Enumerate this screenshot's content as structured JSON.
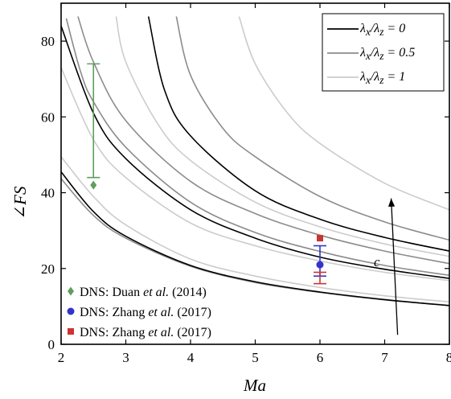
{
  "chart_data": {
    "type": "line",
    "xlabel": "Ma",
    "ylabel": "∠FS",
    "xlim": [
      2,
      8
    ],
    "ylim": [
      0,
      90
    ],
    "xticks": [
      2,
      3,
      4,
      5,
      6,
      7,
      8
    ],
    "yticks": [
      0,
      20,
      40,
      60,
      80
    ],
    "xtick_labels": [
      "2",
      "3",
      "4",
      "5",
      "6",
      "7",
      "8"
    ],
    "ytick_labels": [
      "0",
      "20",
      "40",
      "60",
      "80"
    ],
    "grid": false,
    "legend_position": "top-right",
    "legend": [
      {
        "series_group": "black",
        "color": "#000000",
        "label_html": "λ<sub>x</sub>/λ<sub>z</sub> = 0"
      },
      {
        "series_group": "dark-gray",
        "color": "#8c8c8c",
        "label_html": "λ<sub>x</sub>/λ<sub>z</sub> = 0.5"
      },
      {
        "series_group": "light-gray",
        "color": "#cccccc",
        "label_html": "λ<sub>x</sub>/λ<sub>z</sub> = 1"
      }
    ],
    "series": [
      {
        "group": "black",
        "color": "#000000",
        "x": [
          2,
          2.5,
          3,
          4,
          5,
          6,
          7,
          8
        ],
        "y": [
          45.5,
          35,
          28.5,
          20.8,
          16.5,
          13.8,
          11.8,
          10.2
        ]
      },
      {
        "group": "black",
        "color": "#000000",
        "x": [
          2,
          2.5,
          3,
          4,
          5,
          6,
          7,
          8
        ],
        "y": [
          84,
          61,
          49,
          35.5,
          28,
          23,
          19.8,
          17.4
        ]
      },
      {
        "group": "black",
        "color": "#000000",
        "x": [
          3.35,
          3.6,
          4,
          5,
          6,
          7,
          8
        ],
        "y": [
          86.5,
          67,
          55,
          40.5,
          33,
          28.2,
          24.6
        ]
      },
      {
        "group": "dark-gray",
        "color": "#8c8c8c",
        "x": [
          2,
          2.5,
          3,
          4,
          5,
          6,
          7,
          8
        ],
        "y": [
          43.7,
          34,
          28,
          20.6,
          16.3,
          13.7,
          11.7,
          10.3
        ]
      },
      {
        "group": "dark-gray",
        "color": "#8c8c8c",
        "x": [
          2.08,
          2.3,
          2.5,
          3,
          4,
          5,
          6,
          7,
          8
        ],
        "y": [
          86,
          72,
          64,
          52,
          37.5,
          29.5,
          24.5,
          20.8,
          18.2
        ]
      },
      {
        "group": "dark-gray",
        "color": "#8c8c8c",
        "x": [
          2.26,
          2.5,
          3,
          4,
          5,
          6,
          7,
          8
        ],
        "y": [
          86.5,
          74.5,
          59,
          43,
          34.5,
          28.8,
          24.6,
          21.3
        ]
      },
      {
        "group": "dark-gray",
        "color": "#8c8c8c",
        "x": [
          3.78,
          4,
          4.5,
          5,
          6,
          7,
          8
        ],
        "y": [
          86.5,
          71,
          57,
          49.5,
          39,
          32.3,
          27.5
        ]
      },
      {
        "group": "light-gray",
        "color": "#cccccc",
        "x": [
          2,
          2.5,
          3,
          4,
          5,
          6,
          7,
          8
        ],
        "y": [
          49.5,
          39,
          31.5,
          22.5,
          18,
          15,
          12.8,
          11.2
        ]
      },
      {
        "group": "light-gray",
        "color": "#cccccc",
        "x": [
          2,
          2.5,
          3,
          4,
          5,
          6,
          7,
          8
        ],
        "y": [
          73,
          54,
          44,
          32,
          26,
          22,
          19,
          16.8
        ]
      },
      {
        "group": "light-gray",
        "color": "#cccccc",
        "x": [
          2.85,
          3,
          3.5,
          4,
          5,
          6,
          7,
          8
        ],
        "y": [
          86.5,
          74.5,
          58,
          48.5,
          37.5,
          31,
          26.5,
          23.2
        ]
      },
      {
        "group": "light-gray",
        "color": "#cccccc",
        "x": [
          4.75,
          5,
          5.5,
          6,
          7,
          8
        ],
        "y": [
          86.5,
          74,
          61,
          53,
          42.5,
          35.5
        ]
      }
    ],
    "data_points": [
      {
        "marker": "diamond",
        "color": "#5e9e5e",
        "x": 2.5,
        "y": 42,
        "error": [
          44,
          74
        ],
        "label": "DNS: Duan et al. (2014)"
      },
      {
        "marker": "circle",
        "color": "#3333cc",
        "x": 6,
        "y": 21,
        "error": [
          18,
          26
        ],
        "label": "DNS: Zhang et al. (2017)"
      },
      {
        "marker": "square",
        "color": "#cc3333",
        "x": 6,
        "y": 28,
        "error": [
          16,
          19
        ],
        "label": "DNS: Zhang et al. (2017)"
      }
    ],
    "annotation": {
      "label": "c",
      "arrow_from": [
        7.2,
        2.5
      ],
      "arrow_to": [
        7.1,
        38.5
      ]
    }
  },
  "bottom_legend": [
    {
      "marker": "diamond",
      "color": "#5e9e5e",
      "prefix": "DNS: Duan ",
      "italic": "et al.",
      "suffix": " (2014)"
    },
    {
      "marker": "circle",
      "color": "#3333cc",
      "prefix": "DNS: Zhang ",
      "italic": "et al.",
      "suffix": " (2017)"
    },
    {
      "marker": "square",
      "color": "#cc3333",
      "prefix": "DNS: Zhang ",
      "italic": "et al.",
      "suffix": " (2017)"
    }
  ]
}
